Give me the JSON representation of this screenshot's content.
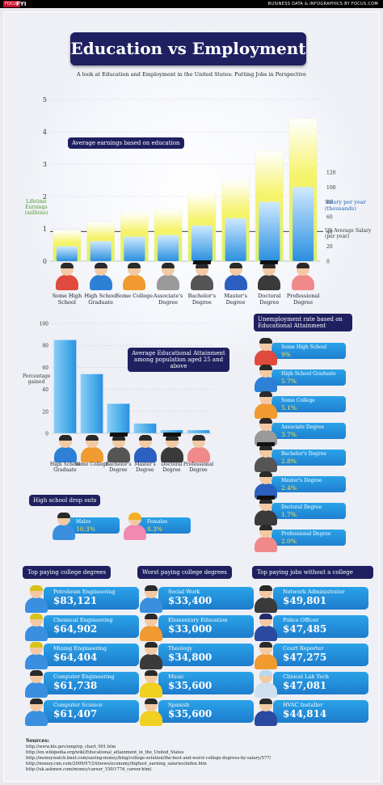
{
  "header": {
    "logo": "FOCUS",
    "section": "FYI",
    "right_text": "BUSINESS DATA & INFOGRAPHICS BY FOCUS.COM"
  },
  "title": "Education vs Employment",
  "subtitle": "A look at Education and Employment in the United States: Putting Jobs in Perspective",
  "colors": {
    "navy": "#1f2060",
    "blue": "#2aa3e8",
    "yellow": "#f4f27a",
    "green": "#4a9a2a"
  },
  "chart_data": [
    {
      "type": "bar",
      "title": "Average earnings based on education",
      "ylabel": "Lifetime Earnings (millions)",
      "y2label": "Salary per year (thousands)",
      "categories": [
        "Some High School",
        "High School Graduate",
        "Some College",
        "Associate's Degree",
        "Bachelor's Degree",
        "Master's Degree",
        "Doctoral Degree",
        "Professional Degree"
      ],
      "series": [
        {
          "name": "Lifetime Earnings",
          "values": [
            0.95,
            1.2,
            1.5,
            1.6,
            2.1,
            2.5,
            3.4,
            4.4
          ]
        },
        {
          "name": "Salary per year",
          "values": [
            20,
            27,
            33,
            35,
            48,
            58,
            80,
            100
          ]
        }
      ],
      "ylim": [
        0,
        5
      ],
      "y2lim": [
        0,
        120
      ],
      "yticks": [
        0,
        1,
        2,
        3,
        4,
        5
      ],
      "y2ticks": [
        0,
        20,
        40,
        60,
        80,
        100,
        120
      ],
      "reference_line": {
        "label": "US Average Salary (per year)",
        "value": 40
      }
    },
    {
      "type": "bar",
      "title": "Average Educational Attainment among population aged 25 and above",
      "ylabel": "Percentage gained",
      "categories": [
        "High School Graduate",
        "Some College",
        "Bachelor's Degree",
        "Master's Degree",
        "Doctoral Degree",
        "Professional Degree"
      ],
      "values": [
        85,
        54,
        27,
        9,
        3,
        3
      ],
      "ylim": [
        0,
        100
      ],
      "yticks": [
        0,
        20,
        40,
        60,
        80,
        100
      ]
    },
    {
      "type": "table",
      "title": "Unemployment rate based on Educational Attainment",
      "categories": [
        "Some High School",
        "High School Graduate",
        "Some College",
        "Associate Degree",
        "Bachelor's Degree",
        "Master's Degree",
        "Doctoral Degree",
        "Professional Degree"
      ],
      "values": [
        "9%",
        "5.7%",
        "5.1%",
        "3.7%",
        "2.8%",
        "2.4%",
        "1.7%",
        "2.0%"
      ]
    },
    {
      "type": "table",
      "title": "High school drop outs",
      "categories": [
        "Males",
        "Females"
      ],
      "values": [
        "10.3%",
        "8.3%"
      ]
    }
  ],
  "unemployment": {
    "title": "Unemployment rate based on Educational Attainment",
    "rows": [
      {
        "label": "Some High School",
        "value": "9%",
        "shirt": "#e04a3c",
        "hat": ""
      },
      {
        "label": "High School Graduate",
        "value": "5.7%",
        "shirt": "#2e7fd6",
        "hat": ""
      },
      {
        "label": "Some College",
        "value": "5.1%",
        "shirt": "#f09a30",
        "hat": ""
      },
      {
        "label": "Associate Degree",
        "value": "3.7%",
        "shirt": "#9a9a9a",
        "hat": ""
      },
      {
        "label": "Bachelor's Degree",
        "value": "2.8%",
        "shirt": "#555555",
        "hat": "cap"
      },
      {
        "label": "Master's Degree",
        "value": "2.4%",
        "shirt": "#2b5fc0",
        "hat": ""
      },
      {
        "label": "Doctoral Degree",
        "value": "1.7%",
        "shirt": "#3a3a3a",
        "hat": "cap"
      },
      {
        "label": "Professional Degree",
        "value": "2.0%",
        "shirt": "#f08a8a",
        "hat": ""
      }
    ]
  },
  "dropouts": {
    "title": "High school drop outs",
    "males_label": "Males",
    "males_value": "10.3%",
    "females_label": "Females",
    "females_value": "8.3%"
  },
  "lists": [
    {
      "title": "Top paying college degrees",
      "items": [
        {
          "name": "Petroleum Engineering",
          "value": "$83,121"
        },
        {
          "name": "Chemical Engineering",
          "value": "$64,902"
        },
        {
          "name": "Mining Engineering",
          "value": "$64,404"
        },
        {
          "name": "Computer Engineering",
          "value": "$61,738"
        },
        {
          "name": "Computer Science",
          "value": "$61,407"
        }
      ]
    },
    {
      "title": "Worst paying college degrees",
      "items": [
        {
          "name": "Social Work",
          "value": "$33,400"
        },
        {
          "name": "Elementary Education",
          "value": "$33,000"
        },
        {
          "name": "Theology",
          "value": "$34,800"
        },
        {
          "name": "Music",
          "value": "$35,600"
        },
        {
          "name": "Spanish",
          "value": "$35,600"
        }
      ]
    },
    {
      "title": "Top paying jobs without a college degree",
      "items": [
        {
          "name": "Network Administrator",
          "value": "$49,801"
        },
        {
          "name": "Police Officer",
          "value": "$47,485"
        },
        {
          "name": "Court Reporter",
          "value": "$47,275"
        },
        {
          "name": "Clinical Lab Tech",
          "value": "$47,081"
        },
        {
          "name": "HVAC Installer",
          "value": "$44,814"
        }
      ]
    }
  ],
  "sources": {
    "heading": "Sources:",
    "lines": [
      "http://www.bls.gov/emp/ep_chart_001.htm",
      "http://en.wikipedia.org/wiki/Educational_attainment_in_the_United_States",
      "http://moneywatch.bnet.com/saving-money/blog/college-solution/the-best-and-worst-college-degrees-by-salary/577/",
      "http://money.cnn.com/2009/07/24/news/economy/highest_earning_salaries/index.htm",
      "http://uk.askmen.com/money/career_150/177d_career.html"
    ]
  }
}
